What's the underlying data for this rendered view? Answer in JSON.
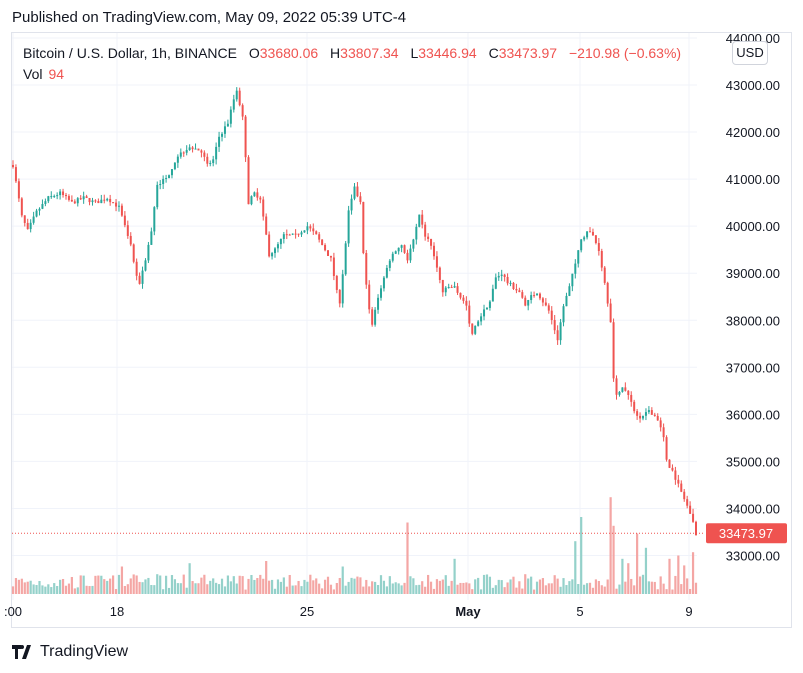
{
  "header": {
    "published": "Published on TradingView.com, May 09, 2022 05:39 UTC-4"
  },
  "legend": {
    "symbol": "Bitcoin / U.S. Dollar, 1h, BINANCE",
    "o_label": "O",
    "o_value": "33680.06",
    "h_label": "H",
    "h_value": "33807.34",
    "l_label": "L",
    "l_value": "33446.94",
    "c_label": "C",
    "c_value": "33473.97",
    "change": "−210.98 (−0.63%)",
    "vol_label": "Vol",
    "vol_value": "94"
  },
  "currency_button": "USD",
  "footer": {
    "brand": "TradingView"
  },
  "colors": {
    "up": "#26a69a",
    "down": "#ef5350",
    "up_vol": "#94d1ca",
    "down_vol": "#f4a6a4",
    "grid": "#f0f3fa",
    "text": "#131722"
  },
  "chart_data": {
    "type": "candlestick",
    "title": "Bitcoin / U.S. Dollar, 1h, BINANCE",
    "y_ticks": [
      "33000.00",
      "34000.00",
      "35000.00",
      "36000.00",
      "37000.00",
      "38000.00",
      "39000.00",
      "40000.00",
      "41000.00",
      "42000.00",
      "43000.00",
      "44000.00"
    ],
    "ylim": [
      32500,
      44100
    ],
    "x_ticks": [
      ":00",
      "18",
      "25",
      "May",
      "5",
      "9"
    ],
    "last_price": 33473.97,
    "last_price_label": "33473.97",
    "path": [
      [
        0,
        41300
      ],
      [
        3,
        40200
      ],
      [
        5,
        39900
      ],
      [
        8,
        40300
      ],
      [
        12,
        40600
      ],
      [
        16,
        40700
      ],
      [
        20,
        40500
      ],
      [
        24,
        40600
      ],
      [
        28,
        40500
      ],
      [
        32,
        40600
      ],
      [
        36,
        40400
      ],
      [
        38,
        40000
      ],
      [
        40,
        39600
      ],
      [
        42,
        38900
      ],
      [
        43,
        38800
      ],
      [
        45,
        39300
      ],
      [
        47,
        39900
      ],
      [
        49,
        40900
      ],
      [
        52,
        41000
      ],
      [
        56,
        41500
      ],
      [
        60,
        41700
      ],
      [
        64,
        41600
      ],
      [
        66,
        41300
      ],
      [
        68,
        41400
      ],
      [
        70,
        41900
      ],
      [
        73,
        42200
      ],
      [
        75,
        42700
      ],
      [
        76,
        42900
      ],
      [
        78,
        42300
      ],
      [
        79,
        41500
      ],
      [
        80,
        40500
      ],
      [
        82,
        40700
      ],
      [
        84,
        40600
      ],
      [
        87,
        39400
      ],
      [
        89,
        39500
      ],
      [
        92,
        39800
      ],
      [
        96,
        39800
      ],
      [
        100,
        40000
      ],
      [
        103,
        39800
      ],
      [
        106,
        39500
      ],
      [
        108,
        39300
      ],
      [
        110,
        38600
      ],
      [
        111,
        38400
      ],
      [
        112,
        39000
      ],
      [
        114,
        40300
      ],
      [
        116,
        40800
      ],
      [
        118,
        40500
      ],
      [
        119,
        39400
      ],
      [
        121,
        38200
      ],
      [
        122,
        37900
      ],
      [
        124,
        38500
      ],
      [
        126,
        38900
      ],
      [
        128,
        39300
      ],
      [
        130,
        39500
      ],
      [
        132,
        39600
      ],
      [
        134,
        39300
      ],
      [
        136,
        39700
      ],
      [
        138,
        40200
      ],
      [
        140,
        39800
      ],
      [
        142,
        39600
      ],
      [
        144,
        39100
      ],
      [
        146,
        38600
      ],
      [
        148,
        38700
      ],
      [
        150,
        38700
      ],
      [
        152,
        38500
      ],
      [
        154,
        38300
      ],
      [
        155,
        37900
      ],
      [
        156,
        37700
      ],
      [
        158,
        38000
      ],
      [
        160,
        38200
      ],
      [
        162,
        38400
      ],
      [
        164,
        38900
      ],
      [
        166,
        39000
      ],
      [
        168,
        38800
      ],
      [
        170,
        38700
      ],
      [
        172,
        38600
      ],
      [
        174,
        38300
      ],
      [
        176,
        38500
      ],
      [
        178,
        38600
      ],
      [
        180,
        38400
      ],
      [
        182,
        38200
      ],
      [
        184,
        37800
      ],
      [
        185,
        37600
      ],
      [
        187,
        38300
      ],
      [
        189,
        38700
      ],
      [
        191,
        39200
      ],
      [
        193,
        39700
      ],
      [
        195,
        39900
      ],
      [
        197,
        39800
      ],
      [
        199,
        39500
      ],
      [
        201,
        38800
      ],
      [
        203,
        38000
      ],
      [
        204,
        36800
      ],
      [
        205,
        36400
      ],
      [
        207,
        36600
      ],
      [
        209,
        36400
      ],
      [
        211,
        36100
      ],
      [
        213,
        35900
      ],
      [
        216,
        36100
      ],
      [
        219,
        35900
      ],
      [
        221,
        35500
      ],
      [
        222,
        35000
      ],
      [
        224,
        34800
      ],
      [
        226,
        34500
      ],
      [
        228,
        34200
      ],
      [
        230,
        33900
      ],
      [
        231,
        33700
      ],
      [
        232,
        33474
      ]
    ],
    "volume_spikes": [
      [
        37,
        0.25
      ],
      [
        49,
        0.18
      ],
      [
        60,
        0.28
      ],
      [
        86,
        0.3
      ],
      [
        112,
        0.25
      ],
      [
        134,
        0.65
      ],
      [
        150,
        0.32
      ],
      [
        174,
        0.18
      ],
      [
        191,
        0.48
      ],
      [
        193,
        0.7
      ],
      [
        203,
        0.88
      ],
      [
        204,
        0.62
      ],
      [
        207,
        0.32
      ],
      [
        209,
        0.28
      ],
      [
        212,
        0.55
      ],
      [
        215,
        0.42
      ],
      [
        223,
        0.32
      ],
      [
        226,
        0.35
      ],
      [
        228,
        0.26
      ],
      [
        231,
        0.38
      ]
    ]
  }
}
